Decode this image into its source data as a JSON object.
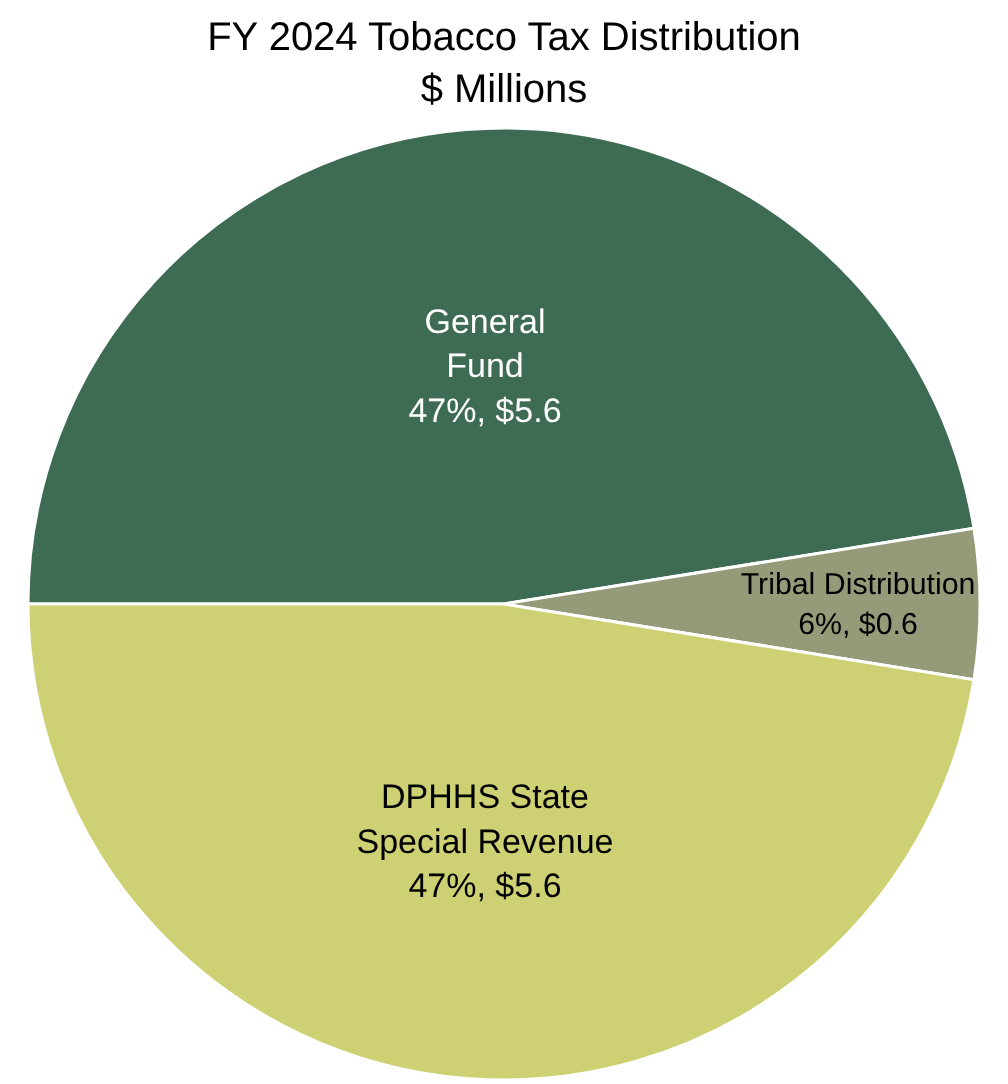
{
  "chart_data": {
    "type": "pie",
    "title": "FY 2024 Tobacco Tax Distribution",
    "subtitle": "$ Millions",
    "categories": [
      "General\nFund",
      "Tribal Distribution",
      "DPHHS State\nSpecial Revenue"
    ],
    "values": [
      5.6,
      0.6,
      5.6
    ],
    "value_labels": [
      "47%, $5.6",
      "6%, $0.6",
      "47%, $5.6"
    ],
    "colors": [
      "#3e6b53",
      "#959a78",
      "#cdd073"
    ],
    "legend": false
  }
}
